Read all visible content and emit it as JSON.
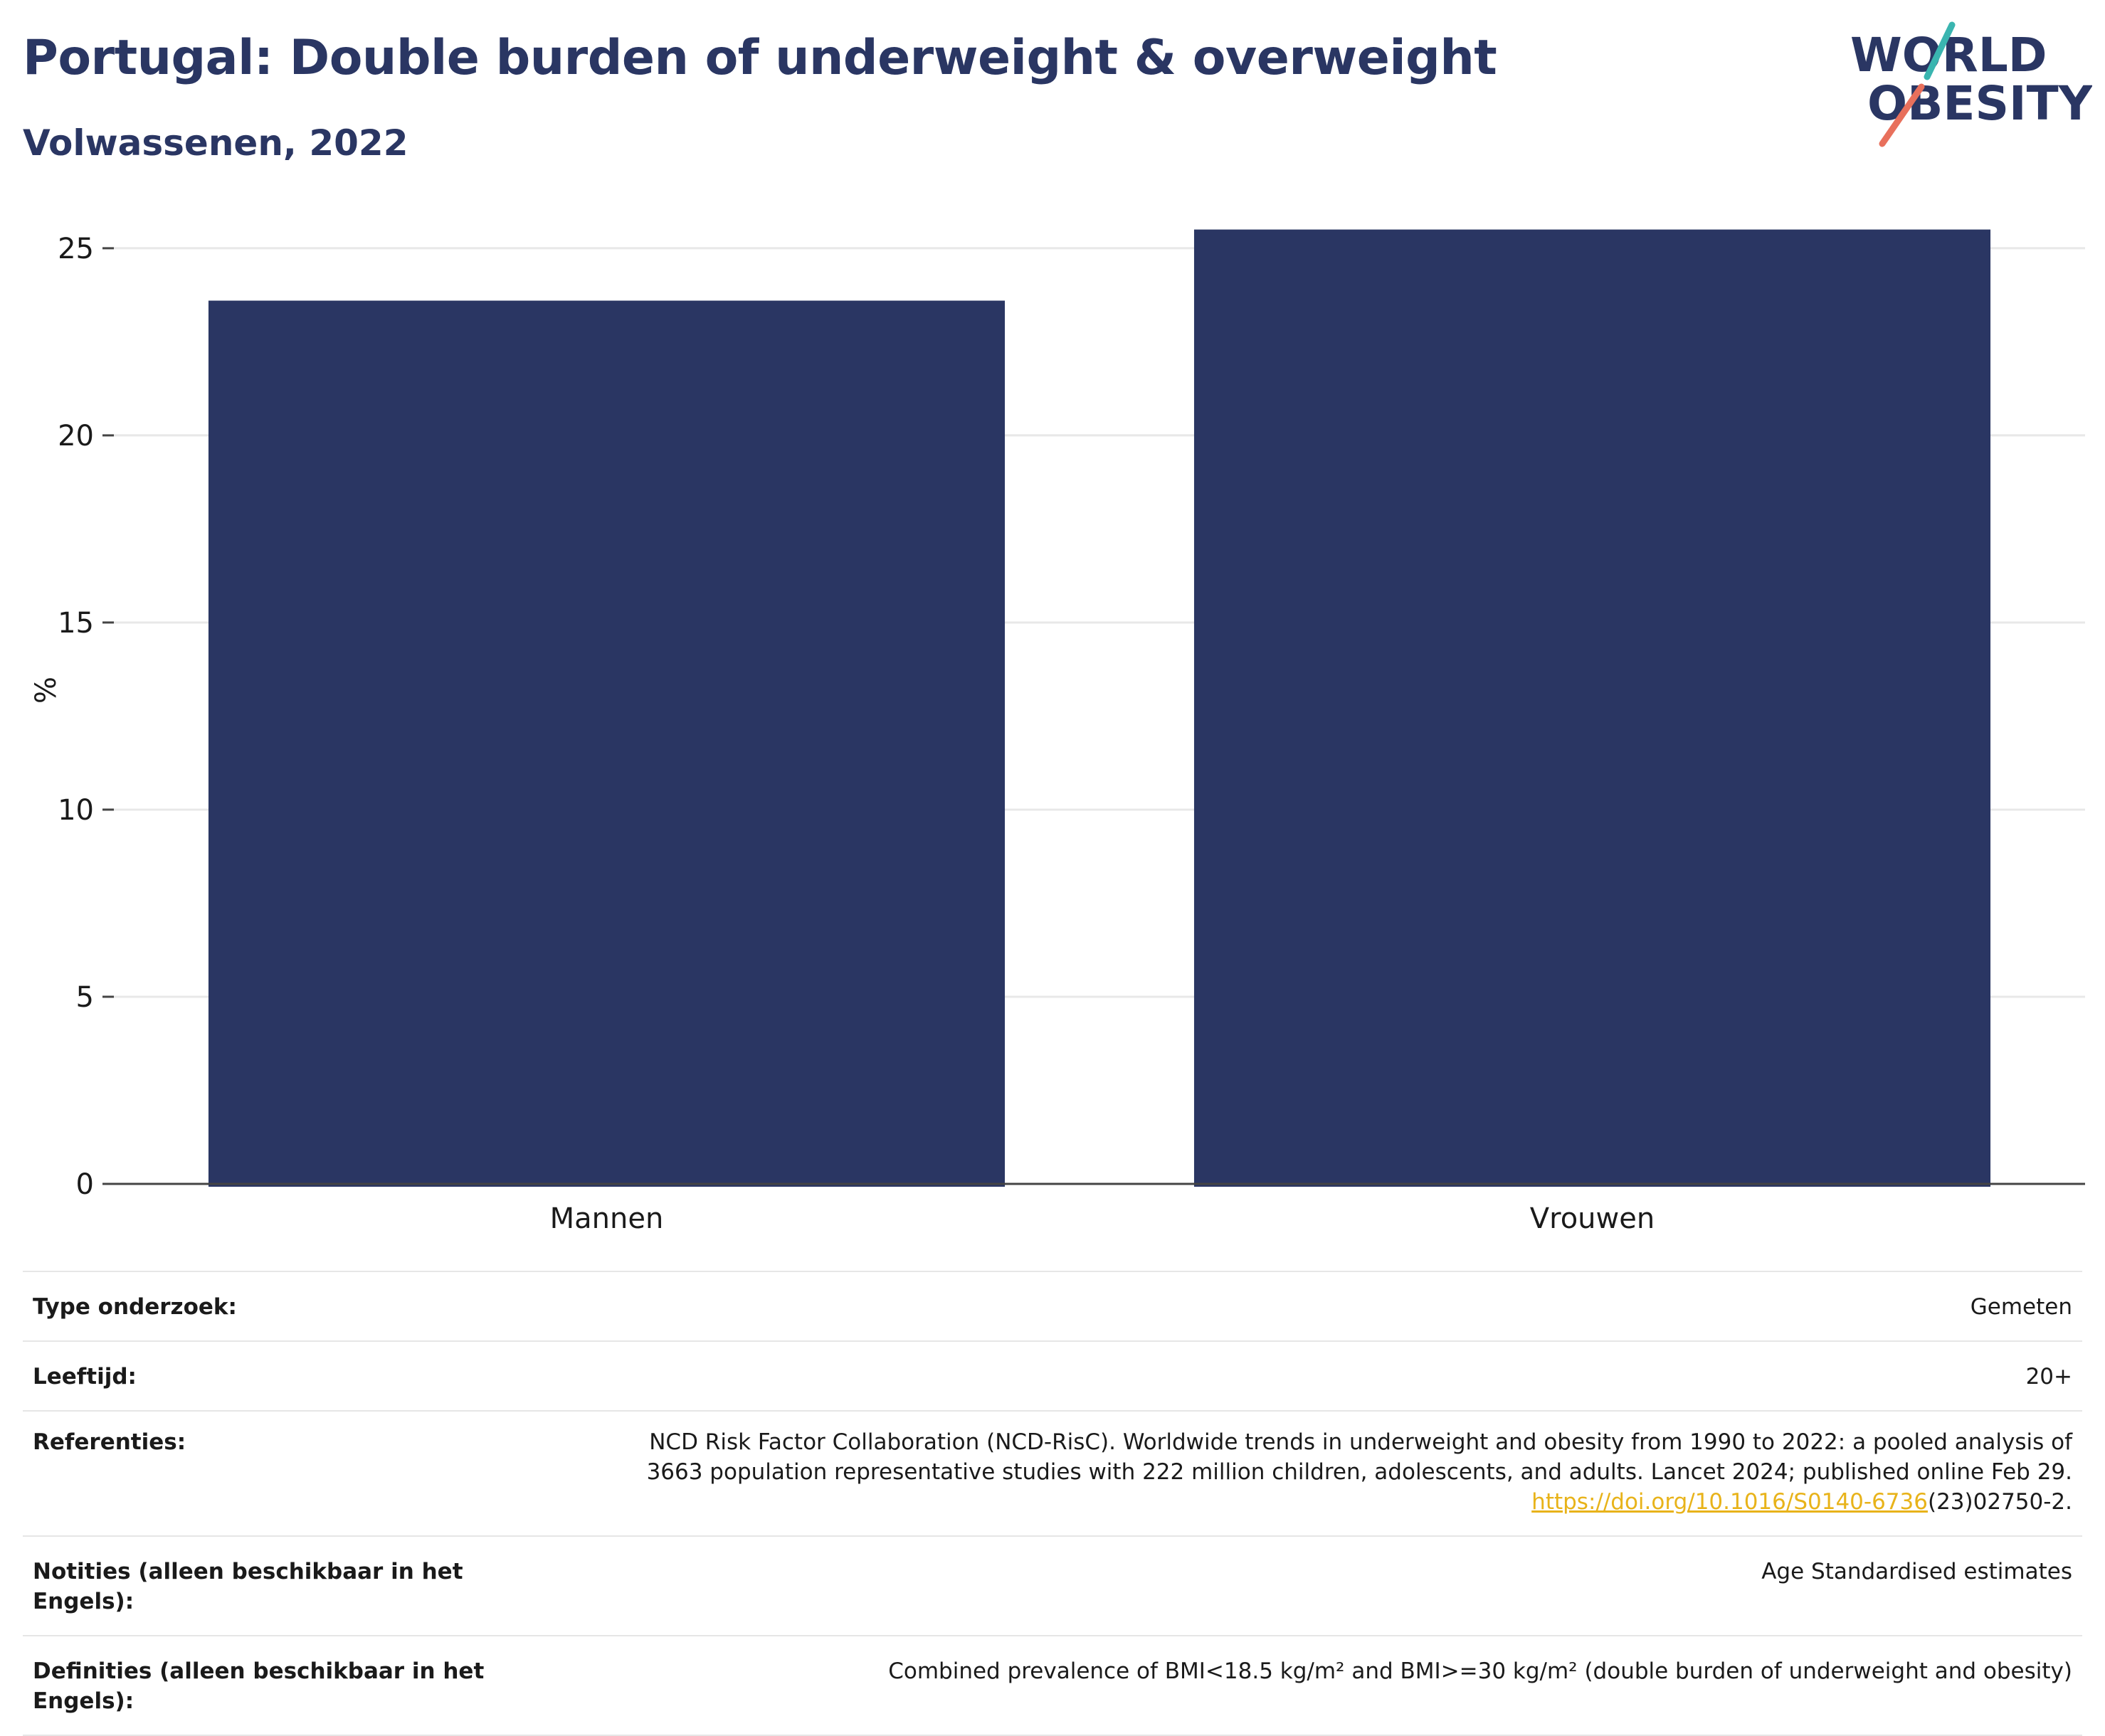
{
  "header": {
    "title": "Portugal: Double burden of underweight & overweight",
    "subtitle": "Volwassenen, 2022"
  },
  "logo": {
    "line1": "WORLD",
    "line2": "OBESITY"
  },
  "colors": {
    "bar": "#2a3663",
    "text": "#2a3663",
    "grid": "#e8e8e8",
    "accent_teal": "#3ab5b0",
    "accent_coral": "#e8705c",
    "link": "#e8b31a"
  },
  "chart_data": {
    "type": "bar",
    "categories": [
      "Mannen",
      "Vrouwen"
    ],
    "values": [
      23.6,
      25.5
    ],
    "ylabel": "%",
    "ylim": [
      0,
      26.5
    ],
    "yticks": [
      0,
      5,
      10,
      15,
      20,
      25
    ],
    "grid": true
  },
  "info": {
    "rows": [
      {
        "label": "Type onderzoek:",
        "value": "Gemeten"
      },
      {
        "label": "Leeftijd:",
        "value": "20+"
      },
      {
        "label": "Referenties:",
        "value_line1": "NCD Risk Factor Collaboration (NCD-RisC). Worldwide trends in underweight and obesity from 1990 to 2022: a pooled analysis of",
        "value_line2": "3663 population representative studies with 222 million children, adolescents, and adults. Lancet 2024; published online Feb 29.",
        "link_text": "https://doi.org/10.1016/S0140-6736",
        "link_suffix": "(23)02750-2."
      },
      {
        "label": "Notities (alleen beschikbaar in het Engels):",
        "value": "Age Standardised estimates"
      },
      {
        "label": "Definities (alleen beschikbaar in het Engels):",
        "value": "Combined prevalence of BMI<18.5 kg/m² and BMI>=30 kg/m² (double burden of underweight and obesity)"
      }
    ]
  }
}
